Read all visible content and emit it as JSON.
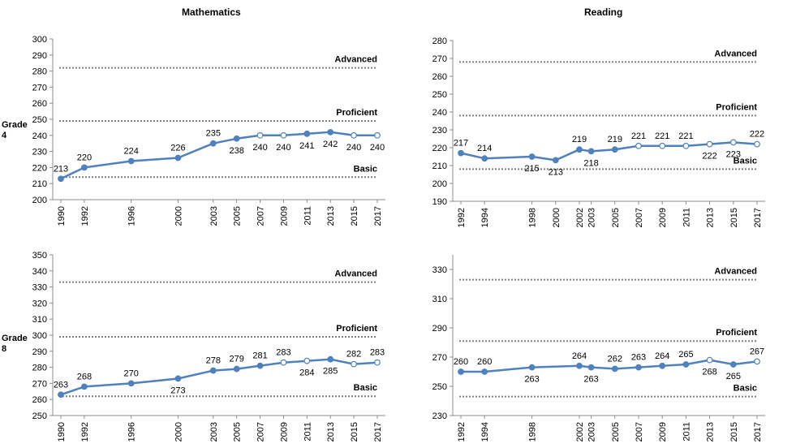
{
  "columns": {
    "math": "Mathematics",
    "reading": "Reading"
  },
  "rows": {
    "grade4": {
      "line1": "Grade",
      "line2": "4"
    },
    "grade8": {
      "line1": "Grade",
      "line2": "8"
    }
  },
  "colors": {
    "series": "#4f81bd",
    "reference": "#7f7f7f"
  },
  "chart_data": [
    {
      "id": "math-g4",
      "type": "line",
      "subject": "Mathematics",
      "grade": "Grade 4",
      "ylim": [
        200,
        300
      ],
      "yticks": [
        200,
        210,
        220,
        230,
        240,
        250,
        260,
        270,
        280,
        290,
        300
      ],
      "xlim": [
        1990,
        2017
      ],
      "xticks": [
        "1990",
        "1992",
        "1996",
        "2000",
        "2003",
        "2005",
        "2007",
        "2009",
        "2011",
        "2013",
        "2015",
        "2017"
      ],
      "points": [
        {
          "x": 1990,
          "y": 213,
          "label": "213",
          "marker": "filled",
          "label_pos": "above"
        },
        {
          "x": 1992,
          "y": 220,
          "label": "220",
          "marker": "filled",
          "label_pos": "above"
        },
        {
          "x": 1996,
          "y": 224,
          "label": "224",
          "marker": "filled",
          "label_pos": "above"
        },
        {
          "x": 2000,
          "y": 226,
          "label": "226",
          "marker": "filled",
          "label_pos": "above"
        },
        {
          "x": 2003,
          "y": 235,
          "label": "235",
          "marker": "filled",
          "label_pos": "above"
        },
        {
          "x": 2005,
          "y": 238,
          "label": "238",
          "marker": "filled",
          "label_pos": "below"
        },
        {
          "x": 2007,
          "y": 240,
          "label": "240",
          "marker": "open",
          "label_pos": "below"
        },
        {
          "x": 2009,
          "y": 240,
          "label": "240",
          "marker": "open",
          "label_pos": "below"
        },
        {
          "x": 2011,
          "y": 241,
          "label": "241",
          "marker": "filled",
          "label_pos": "below"
        },
        {
          "x": 2013,
          "y": 242,
          "label": "242",
          "marker": "filled",
          "label_pos": "below"
        },
        {
          "x": 2015,
          "y": 240,
          "label": "240",
          "marker": "open",
          "label_pos": "below"
        },
        {
          "x": 2017,
          "y": 240,
          "label": "240",
          "marker": "open",
          "label_pos": "below"
        }
      ],
      "reference_lines": [
        {
          "name": "Advanced",
          "y": 282
        },
        {
          "name": "Proficient",
          "y": 249
        },
        {
          "name": "Basic",
          "y": 214
        }
      ]
    },
    {
      "id": "reading-g4",
      "type": "line",
      "subject": "Reading",
      "grade": "Grade 4",
      "ylim": [
        190,
        280
      ],
      "yticks": [
        190,
        200,
        210,
        220,
        230,
        240,
        250,
        260,
        270,
        280
      ],
      "xlim": [
        1992,
        2017
      ],
      "xticks": [
        "1992",
        "1994",
        "1998",
        "2000",
        "2002",
        "2003",
        "2005",
        "2007",
        "2009",
        "2011",
        "2013",
        "2015",
        "2017"
      ],
      "points": [
        {
          "x": 1992,
          "y": 217,
          "label": "217",
          "marker": "filled",
          "label_pos": "above"
        },
        {
          "x": 1994,
          "y": 214,
          "label": "214",
          "marker": "filled",
          "label_pos": "above"
        },
        {
          "x": 1998,
          "y": 215,
          "label": "215",
          "marker": "filled",
          "label_pos": "below"
        },
        {
          "x": 2000,
          "y": 213,
          "label": "213",
          "marker": "filled",
          "label_pos": "below"
        },
        {
          "x": 2002,
          "y": 219,
          "label": "219",
          "marker": "filled",
          "label_pos": "above"
        },
        {
          "x": 2003,
          "y": 218,
          "label": "218",
          "marker": "filled",
          "label_pos": "below"
        },
        {
          "x": 2005,
          "y": 219,
          "label": "219",
          "marker": "filled",
          "label_pos": "above"
        },
        {
          "x": 2007,
          "y": 221,
          "label": "221",
          "marker": "open",
          "label_pos": "above"
        },
        {
          "x": 2009,
          "y": 221,
          "label": "221",
          "marker": "open",
          "label_pos": "above"
        },
        {
          "x": 2011,
          "y": 221,
          "label": "221",
          "marker": "open",
          "label_pos": "above"
        },
        {
          "x": 2013,
          "y": 222,
          "label": "222",
          "marker": "open",
          "label_pos": "below"
        },
        {
          "x": 2015,
          "y": 223,
          "label": "223",
          "marker": "open",
          "label_pos": "below"
        },
        {
          "x": 2017,
          "y": 222,
          "label": "222",
          "marker": "open",
          "label_pos": "above"
        }
      ],
      "reference_lines": [
        {
          "name": "Advanced",
          "y": 268
        },
        {
          "name": "Proficient",
          "y": 238
        },
        {
          "name": "Basic",
          "y": 208
        }
      ]
    },
    {
      "id": "math-g8",
      "type": "line",
      "subject": "Mathematics",
      "grade": "Grade 8",
      "ylim": [
        250,
        350
      ],
      "yticks": [
        250,
        260,
        270,
        280,
        290,
        300,
        310,
        320,
        330,
        340,
        350
      ],
      "xlim": [
        1990,
        2017
      ],
      "xticks": [
        "1990",
        "1992",
        "1996",
        "2000",
        "2003",
        "2005",
        "2007",
        "2009",
        "2011",
        "2013",
        "2015",
        "2017"
      ],
      "points": [
        {
          "x": 1990,
          "y": 263,
          "label": "263",
          "marker": "filled",
          "label_pos": "above"
        },
        {
          "x": 1992,
          "y": 268,
          "label": "268",
          "marker": "filled",
          "label_pos": "above"
        },
        {
          "x": 1996,
          "y": 270,
          "label": "270",
          "marker": "filled",
          "label_pos": "above"
        },
        {
          "x": 2000,
          "y": 273,
          "label": "273",
          "marker": "filled",
          "label_pos": "below"
        },
        {
          "x": 2003,
          "y": 278,
          "label": "278",
          "marker": "filled",
          "label_pos": "above"
        },
        {
          "x": 2005,
          "y": 279,
          "label": "279",
          "marker": "filled",
          "label_pos": "above"
        },
        {
          "x": 2007,
          "y": 281,
          "label": "281",
          "marker": "filled",
          "label_pos": "above"
        },
        {
          "x": 2009,
          "y": 283,
          "label": "283",
          "marker": "open",
          "label_pos": "above"
        },
        {
          "x": 2011,
          "y": 284,
          "label": "284",
          "marker": "open",
          "label_pos": "below"
        },
        {
          "x": 2013,
          "y": 285,
          "label": "285",
          "marker": "filled",
          "label_pos": "below"
        },
        {
          "x": 2015,
          "y": 282,
          "label": "282",
          "marker": "open",
          "label_pos": "above"
        },
        {
          "x": 2017,
          "y": 283,
          "label": "283",
          "marker": "open",
          "label_pos": "above"
        }
      ],
      "reference_lines": [
        {
          "name": "Advanced",
          "y": 333
        },
        {
          "name": "Proficient",
          "y": 299
        },
        {
          "name": "Basic",
          "y": 262
        }
      ]
    },
    {
      "id": "reading-g8",
      "type": "line",
      "subject": "Reading",
      "grade": "Grade 8",
      "ylim": [
        230,
        340
      ],
      "yticks": [
        230,
        250,
        270,
        290,
        310,
        330
      ],
      "xlim": [
        1992,
        2017
      ],
      "xticks": [
        "1992",
        "1994",
        "1998",
        "2002",
        "2003",
        "2005",
        "2007",
        "2009",
        "2011",
        "2013",
        "2015",
        "2017"
      ],
      "points": [
        {
          "x": 1992,
          "y": 260,
          "label": "260",
          "marker": "filled",
          "label_pos": "above"
        },
        {
          "x": 1994,
          "y": 260,
          "label": "260",
          "marker": "filled",
          "label_pos": "above"
        },
        {
          "x": 1998,
          "y": 263,
          "label": "263",
          "marker": "filled",
          "label_pos": "below"
        },
        {
          "x": 2002,
          "y": 264,
          "label": "264",
          "marker": "filled",
          "label_pos": "above"
        },
        {
          "x": 2003,
          "y": 263,
          "label": "263",
          "marker": "filled",
          "label_pos": "below"
        },
        {
          "x": 2005,
          "y": 262,
          "label": "262",
          "marker": "filled",
          "label_pos": "above"
        },
        {
          "x": 2007,
          "y": 263,
          "label": "263",
          "marker": "filled",
          "label_pos": "above"
        },
        {
          "x": 2009,
          "y": 264,
          "label": "264",
          "marker": "filled",
          "label_pos": "above"
        },
        {
          "x": 2011,
          "y": 265,
          "label": "265",
          "marker": "filled",
          "label_pos": "above"
        },
        {
          "x": 2013,
          "y": 268,
          "label": "268",
          "marker": "open",
          "label_pos": "below"
        },
        {
          "x": 2015,
          "y": 265,
          "label": "265",
          "marker": "filled",
          "label_pos": "below"
        },
        {
          "x": 2017,
          "y": 267,
          "label": "267",
          "marker": "open",
          "label_pos": "above"
        }
      ],
      "reference_lines": [
        {
          "name": "Advanced",
          "y": 323
        },
        {
          "name": "Proficient",
          "y": 281
        },
        {
          "name": "Basic",
          "y": 243
        }
      ]
    }
  ]
}
